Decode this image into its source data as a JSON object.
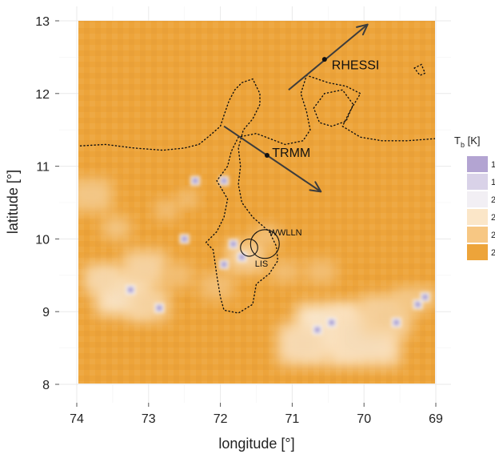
{
  "chart_data": {
    "type": "heatmap",
    "xlabel": "longitude [°]",
    "ylabel": "latitude [°]",
    "x_ticks": [
      74,
      73,
      72,
      71,
      70,
      69
    ],
    "y_ticks": [
      8,
      9,
      10,
      11,
      12,
      13
    ],
    "xlim": [
      74.05,
      68.8
    ],
    "ylim": [
      7.75,
      13.15
    ],
    "x_reversed": true,
    "grid": true,
    "legend": {
      "title_main": "T",
      "title_sub": "b",
      "title_unit": " [K]",
      "placement": "right",
      "entries": [
        {
          "label": "1",
          "color": "#b3a4d2"
        },
        {
          "label": "1",
          "color": "#d9d2e8"
        },
        {
          "label": "2",
          "color": "#f2eff4"
        },
        {
          "label": "2",
          "color": "#fbe6c8"
        },
        {
          "label": "2",
          "color": "#f7c783"
        },
        {
          "label": "2",
          "color": "#eda43a"
        }
      ]
    },
    "colors": {
      "background_field": "#eda43a",
      "dark_field": "#ea9a2a",
      "cold_core": "#a59ad0"
    },
    "cold_patches": [
      {
        "lon": 73.35,
        "lat": 9.25,
        "r": 0.38,
        "level": 0.75
      },
      {
        "lon": 73.65,
        "lat": 9.45,
        "r": 0.25,
        "level": 0.6
      },
      {
        "lon": 73.05,
        "lat": 9.6,
        "r": 0.3,
        "level": 0.55
      },
      {
        "lon": 73.0,
        "lat": 9.1,
        "r": 0.28,
        "level": 0.55
      },
      {
        "lon": 73.8,
        "lat": 10.6,
        "r": 0.28,
        "level": 0.4
      },
      {
        "lon": 73.45,
        "lat": 10.15,
        "r": 0.18,
        "level": 0.4
      },
      {
        "lon": 72.45,
        "lat": 10.55,
        "r": 0.12,
        "level": 0.45
      },
      {
        "lon": 72.75,
        "lat": 10.4,
        "r": 0.15,
        "level": 0.35
      },
      {
        "lon": 71.65,
        "lat": 9.75,
        "r": 0.26,
        "level": 0.55
      },
      {
        "lon": 71.35,
        "lat": 10.05,
        "r": 0.16,
        "level": 0.35
      },
      {
        "lon": 70.5,
        "lat": 8.75,
        "r": 0.45,
        "level": 0.85
      },
      {
        "lon": 70.0,
        "lat": 8.65,
        "r": 0.5,
        "level": 0.7
      },
      {
        "lon": 70.85,
        "lat": 8.55,
        "r": 0.35,
        "level": 0.65
      },
      {
        "lon": 69.7,
        "lat": 8.95,
        "r": 0.35,
        "level": 0.5
      },
      {
        "lon": 69.35,
        "lat": 9.15,
        "r": 0.22,
        "level": 0.4
      },
      {
        "lon": 69.1,
        "lat": 9.2,
        "r": 0.14,
        "level": 0.4
      },
      {
        "lon": 71.1,
        "lat": 9.55,
        "r": 0.18,
        "level": 0.3
      },
      {
        "lon": 70.6,
        "lat": 9.55,
        "r": 0.2,
        "level": 0.3
      },
      {
        "lon": 72.05,
        "lat": 9.35,
        "r": 0.22,
        "level": 0.3
      },
      {
        "lon": 72.6,
        "lat": 9.5,
        "r": 0.2,
        "level": 0.3
      }
    ],
    "cold_cores": [
      {
        "lon": 73.25,
        "lat": 9.3
      },
      {
        "lon": 72.85,
        "lat": 9.05
      },
      {
        "lon": 72.35,
        "lat": 10.8
      },
      {
        "lon": 71.95,
        "lat": 10.8
      },
      {
        "lon": 72.5,
        "lat": 10.0
      },
      {
        "lon": 71.82,
        "lat": 9.93
      },
      {
        "lon": 71.95,
        "lat": 9.65
      },
      {
        "lon": 71.7,
        "lat": 9.75
      },
      {
        "lon": 70.65,
        "lat": 8.75
      },
      {
        "lon": 70.45,
        "lat": 8.85
      },
      {
        "lon": 69.55,
        "lat": 8.85
      },
      {
        "lon": 69.25,
        "lat": 9.1
      },
      {
        "lon": 69.15,
        "lat": 9.2
      }
    ],
    "tracks": [
      {
        "name": "RHESSI",
        "from": [
          71.05,
          12.05
        ],
        "to": [
          69.95,
          12.95
        ],
        "marker": [
          70.55,
          12.47
        ],
        "label_at": [
          70.45,
          12.38
        ]
      },
      {
        "name": "TRMM",
        "from": [
          71.95,
          11.55
        ],
        "to": [
          70.6,
          10.65
        ],
        "marker": [
          71.35,
          11.15
        ],
        "label_at": [
          71.28,
          11.17
        ]
      }
    ],
    "flash_areas": [
      {
        "name": "WWLLN",
        "center": [
          71.38,
          9.93
        ],
        "r": 0.2,
        "label_at": [
          71.32,
          10.05
        ]
      },
      {
        "name": "LIS",
        "center": [
          71.6,
          9.88
        ],
        "r": 0.12,
        "label_at": [
          71.52,
          9.62
        ]
      }
    ],
    "coast_dotted": [
      [
        73.95,
        11.28
      ],
      [
        73.6,
        11.3
      ],
      [
        73.2,
        11.25
      ],
      [
        72.8,
        11.22
      ],
      [
        72.5,
        11.25
      ],
      [
        72.3,
        11.3
      ],
      [
        72.15,
        11.42
      ],
      [
        72.0,
        11.55
      ],
      [
        71.95,
        11.7
      ],
      [
        71.88,
        11.9
      ],
      [
        71.8,
        12.05
      ],
      [
        71.7,
        12.15
      ],
      [
        71.55,
        12.2
      ],
      [
        71.45,
        12.0
      ],
      [
        71.45,
        11.85
      ],
      [
        71.55,
        11.65
      ],
      [
        71.68,
        11.5
      ],
      [
        71.75,
        11.25
      ],
      [
        71.72,
        11.0
      ],
      [
        71.75,
        10.75
      ],
      [
        71.7,
        10.5
      ],
      [
        71.55,
        10.3
      ],
      [
        71.32,
        10.1
      ],
      [
        71.22,
        9.9
      ],
      [
        71.2,
        9.7
      ],
      [
        71.32,
        9.52
      ],
      [
        71.5,
        9.38
      ],
      [
        71.55,
        9.1
      ],
      [
        71.75,
        8.98
      ],
      [
        71.95,
        9.02
      ],
      [
        72.0,
        9.2
      ],
      [
        72.05,
        9.5
      ],
      [
        72.1,
        9.85
      ],
      [
        72.2,
        9.95
      ],
      [
        72.05,
        10.1
      ],
      [
        71.95,
        10.3
      ],
      [
        71.9,
        10.55
      ],
      [
        72.05,
        10.8
      ],
      [
        71.9,
        11.0
      ],
      [
        71.85,
        11.2
      ],
      [
        71.75,
        11.4
      ],
      [
        71.5,
        11.45
      ],
      [
        71.1,
        11.3
      ],
      [
        70.85,
        11.35
      ],
      [
        70.75,
        11.5
      ],
      [
        70.8,
        11.75
      ],
      [
        70.88,
        12.0
      ],
      [
        70.8,
        12.25
      ],
      [
        70.5,
        12.15
      ],
      [
        70.25,
        12.1
      ],
      [
        70.05,
        12.0
      ],
      [
        70.2,
        11.75
      ],
      [
        70.3,
        11.55
      ],
      [
        70.05,
        11.4
      ],
      [
        69.75,
        11.35
      ],
      [
        69.4,
        11.35
      ],
      [
        69.0,
        11.38
      ]
    ],
    "island_dotted": [
      [
        69.3,
        12.35
      ],
      [
        69.2,
        12.4
      ],
      [
        69.15,
        12.28
      ],
      [
        69.22,
        12.25
      ],
      [
        69.3,
        12.35
      ]
    ],
    "cape_dotted": [
      [
        70.7,
        11.8
      ],
      [
        70.55,
        12.0
      ],
      [
        70.3,
        12.05
      ],
      [
        70.15,
        11.85
      ],
      [
        70.25,
        11.62
      ],
      [
        70.45,
        11.55
      ],
      [
        70.62,
        11.6
      ],
      [
        70.7,
        11.8
      ]
    ]
  }
}
